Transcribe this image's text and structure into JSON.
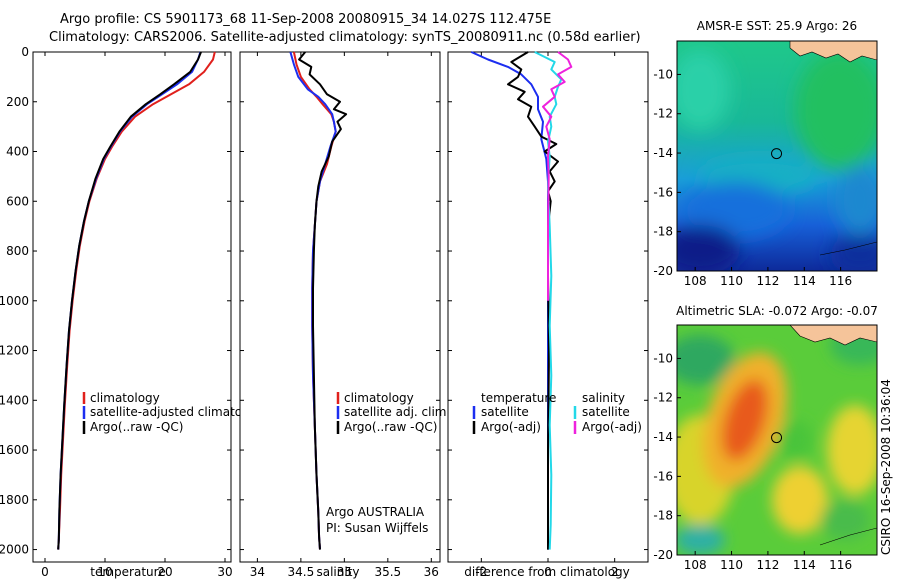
{
  "header": {
    "title1": "Argo profile: CS 5901173_68 11-Sep-2008 20080915_34 14.027S 112.475E",
    "title2": "Climatology: CARS2006. Satellite-adjusted climatology: synTS_20080911.nc (0.58d earlier)"
  },
  "credit": "CSIRO 16-Sep-2008 10:36:04",
  "chart_data": [
    {
      "type": "line",
      "id": "temp",
      "xlabel": "temperature",
      "xlim": [
        -2,
        31
      ],
      "ylim": [
        0,
        2050
      ],
      "xticks": [
        0,
        10,
        20,
        30
      ],
      "yticks": [
        0,
        200,
        400,
        600,
        800,
        1000,
        1200,
        1400,
        1600,
        1800,
        2000
      ],
      "legend": [
        "climatology",
        "satellite-adjusted climatology",
        "Argo(..raw -QC)"
      ],
      "series": [
        {
          "name": "climatology",
          "color": "#e0201c",
          "x": [
            28.3,
            28,
            26.5,
            24,
            21,
            18,
            15,
            12.8,
            11.2,
            10,
            8.6,
            7.4,
            6.6,
            5.8,
            5.2,
            4.6,
            4.1,
            3.7,
            3.3,
            3,
            2.7,
            2.5,
            2.3,
            2.2
          ],
          "y": [
            0,
            30,
            80,
            130,
            170,
            210,
            260,
            320,
            380,
            430,
            510,
            600,
            680,
            780,
            880,
            1000,
            1120,
            1260,
            1420,
            1560,
            1700,
            1840,
            1960,
            2000
          ]
        },
        {
          "name": "satellite-adjusted climatology",
          "color": "#1c2ef0",
          "x": [
            25.9,
            25.5,
            24.5,
            22,
            19.5,
            17,
            14.5,
            12.5,
            11,
            9.8,
            8.5,
            7.3,
            6.5,
            5.7,
            5.1,
            4.5,
            4,
            3.6,
            3.2,
            2.9,
            2.6,
            2.4,
            2.3,
            2.2
          ],
          "y": [
            0,
            30,
            80,
            130,
            170,
            210,
            260,
            320,
            380,
            430,
            510,
            600,
            680,
            780,
            880,
            1000,
            1120,
            1260,
            1420,
            1560,
            1700,
            1840,
            1960,
            2000
          ]
        },
        {
          "name": "Argo(..raw -QC)",
          "color": "#000000",
          "x": [
            26,
            25.5,
            24.2,
            21.5,
            19.2,
            16.8,
            14.3,
            12.4,
            10.9,
            9.7,
            8.4,
            7.3,
            6.5,
            5.7,
            5.1,
            4.5,
            4,
            3.6,
            3.2,
            2.9,
            2.6,
            2.4,
            2.3,
            2.2
          ],
          "y": [
            0,
            30,
            80,
            130,
            170,
            210,
            260,
            320,
            380,
            430,
            510,
            600,
            680,
            780,
            880,
            1000,
            1120,
            1260,
            1420,
            1560,
            1700,
            1840,
            1960,
            2000
          ]
        }
      ]
    },
    {
      "type": "line",
      "id": "sal",
      "xlabel": "salinity",
      "xlim": [
        33.8,
        36.1
      ],
      "ylim": [
        0,
        2050
      ],
      "xticks": [
        34,
        34.5,
        35,
        35.5,
        36
      ],
      "yticks": [
        0,
        200,
        400,
        600,
        800,
        1000,
        1200,
        1400,
        1600,
        1800,
        2000
      ],
      "legend": [
        "climatology",
        "satellite adj. clim.",
        "Argo(..raw -QC)"
      ],
      "annotation": [
        "Argo AUSTRALIA",
        "PI: Susan Wijffels"
      ],
      "series": [
        {
          "name": "climatology",
          "color": "#e0201c",
          "x": [
            34.42,
            34.45,
            34.5,
            34.6,
            34.68,
            34.75,
            34.85,
            34.88,
            34.9,
            34.85,
            34.8,
            34.72,
            34.68,
            34.66,
            34.64,
            34.63,
            34.63,
            34.64,
            34.66,
            34.68,
            34.7,
            34.71,
            34.72
          ],
          "y": [
            0,
            50,
            100,
            150,
            180,
            210,
            250,
            280,
            320,
            380,
            450,
            520,
            600,
            700,
            800,
            950,
            1100,
            1300,
            1500,
            1700,
            1850,
            1950,
            2000
          ]
        },
        {
          "name": "satellite adj. clim.",
          "color": "#1c2ef0",
          "x": [
            34.38,
            34.42,
            34.47,
            34.58,
            34.7,
            34.78,
            34.86,
            34.88,
            34.9,
            34.84,
            34.78,
            34.72,
            34.68,
            34.66,
            34.64,
            34.63,
            34.63,
            34.64,
            34.66,
            34.68,
            34.7,
            34.71,
            34.72
          ],
          "y": [
            0,
            50,
            100,
            150,
            180,
            210,
            250,
            280,
            320,
            380,
            450,
            520,
            600,
            700,
            800,
            950,
            1100,
            1300,
            1500,
            1700,
            1850,
            1950,
            2000
          ]
        },
        {
          "name": "Argo(..raw -QC)",
          "color": "#000000",
          "x": [
            34.55,
            34.48,
            34.62,
            34.6,
            34.72,
            34.8,
            34.95,
            34.88,
            35.02,
            34.92,
            34.96,
            34.86,
            34.82,
            34.74,
            34.7,
            34.68,
            34.66,
            34.65,
            34.64,
            34.64,
            34.65,
            34.66,
            34.68,
            34.7,
            34.71,
            34.72
          ],
          "y": [
            0,
            30,
            60,
            90,
            130,
            170,
            200,
            230,
            250,
            280,
            310,
            360,
            420,
            480,
            540,
            600,
            700,
            800,
            950,
            1100,
            1300,
            1500,
            1700,
            1850,
            1950,
            2000
          ]
        }
      ]
    },
    {
      "type": "line",
      "id": "diff",
      "xlabel": "difference from climatology",
      "xlim": [
        -3,
        3
      ],
      "ylim": [
        0,
        2050
      ],
      "xticks": [
        -2,
        0,
        2
      ],
      "yticks": [
        0,
        200,
        400,
        600,
        800,
        1000,
        1200,
        1400,
        1600,
        1800,
        2000
      ],
      "legend_temperature": [
        "temperature",
        "satellite",
        "Argo(-adj)"
      ],
      "legend_salinity": [
        "salinity",
        "satellite",
        "Argo(-adj)"
      ],
      "series": [
        {
          "name": "temperature satellite",
          "color": "#1c2ef0",
          "x": [
            -2.3,
            -1.8,
            -1.2,
            -0.8,
            -0.5,
            -0.3,
            -0.3,
            -0.15,
            -0.2,
            -0.05,
            0,
            0,
            0,
            0
          ],
          "y": [
            0,
            30,
            60,
            90,
            130,
            180,
            230,
            280,
            350,
            430,
            520,
            650,
            800,
            2000
          ]
        },
        {
          "name": "temperature Argo(-adj)",
          "color": "#000000",
          "x": [
            -0.6,
            -1.1,
            -0.8,
            -0.9,
            -1.2,
            -0.7,
            -0.9,
            -0.5,
            -0.6,
            -0.4,
            -0.2,
            0.25,
            -0.1,
            0.3,
            0.05,
            0.2,
            0,
            0.08,
            0,
            0,
            0.03,
            0,
            0
          ],
          "y": [
            0,
            40,
            70,
            100,
            130,
            160,
            190,
            220,
            260,
            300,
            340,
            370,
            400,
            440,
            480,
            520,
            560,
            600,
            700,
            900,
            1200,
            1600,
            2000
          ]
        },
        {
          "name": "salinity satellite",
          "color": "#23d8e8",
          "x": [
            -0.4,
            -0.1,
            0.2,
            0.1,
            0.4,
            0.3,
            0.2,
            0.25,
            0.05,
            0.1,
            0,
            0.05,
            0.02,
            0,
            0.05,
            0.1,
            0.05,
            0.1,
            0.05,
            0.1,
            0.08,
            0.05
          ],
          "y": [
            0,
            20,
            40,
            70,
            110,
            140,
            180,
            210,
            260,
            300,
            360,
            420,
            480,
            550,
            700,
            900,
            1100,
            1300,
            1500,
            1700,
            1900,
            2000
          ]
        },
        {
          "name": "salinity Argo(-adj)",
          "color": "#ee22dd",
          "x": [
            0.3,
            0.6,
            0.7,
            0.3,
            0.5,
            0.1,
            0.2,
            -0.15,
            0.1,
            -0.05,
            0.05,
            0,
            0.02,
            0,
            0
          ],
          "y": [
            0,
            30,
            60,
            90,
            120,
            150,
            180,
            220,
            260,
            300,
            350,
            420,
            500,
            700,
            1000
          ]
        }
      ]
    },
    {
      "type": "heatmap",
      "id": "sst",
      "title": "AMSR-E SST: 25.9 Argo: 26",
      "xticks": [
        108,
        110,
        112,
        114,
        116
      ],
      "yticks": [
        -10,
        -12,
        -14,
        -16,
        -18,
        -20
      ],
      "xlim": [
        107,
        118
      ],
      "ylim": [
        -20,
        -8.3
      ],
      "marker": {
        "lon": 112.475,
        "lat": -14.027
      }
    },
    {
      "type": "heatmap",
      "id": "sla",
      "title": "Altimetric SLA: -0.072 Argo: -0.07",
      "xticks": [
        108,
        110,
        112,
        114,
        116
      ],
      "yticks": [
        -10,
        -12,
        -14,
        -16,
        -18,
        -20
      ],
      "xlim": [
        107,
        118
      ],
      "ylim": [
        -20,
        -8.3
      ],
      "marker": {
        "lon": 112.475,
        "lat": -14.027
      }
    }
  ]
}
